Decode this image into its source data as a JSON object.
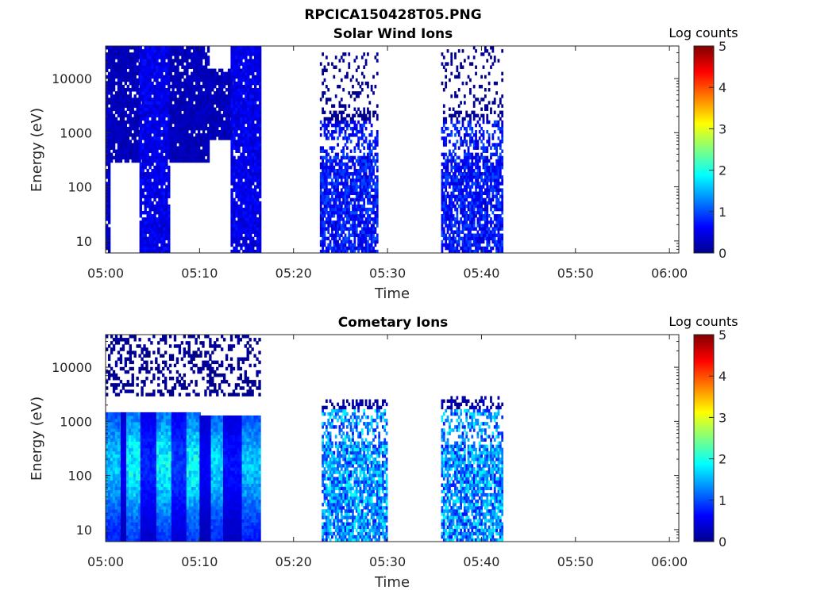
{
  "figure": {
    "title": "RPCICA150428T05.PNG"
  },
  "chart_data": [
    {
      "type": "heatmap",
      "title": "Solar Wind Ions",
      "xlabel": "Time",
      "ylabel": "Energy (eV)",
      "yscale": "log",
      "xlim": [
        "05:00",
        "06:01"
      ],
      "ylim": [
        6,
        40000
      ],
      "xticks": [
        "05:00",
        "05:10",
        "05:20",
        "05:30",
        "05:40",
        "05:50",
        "06:00"
      ],
      "yticks": [
        "10",
        "100",
        "1000",
        "10000"
      ],
      "colorbar": {
        "label": "Log counts",
        "range": [
          0,
          5
        ],
        "ticks": [
          "0",
          "1",
          "2",
          "3",
          "4",
          "5"
        ],
        "colormap": "jet"
      },
      "bands": [
        {
          "t": [
            0.0,
            0.5
          ],
          "e": [
            6,
            40000
          ],
          "level": 0.35,
          "style": "blocky"
        },
        {
          "t": [
            0.5,
            3.6
          ],
          "e": [
            300,
            40000
          ],
          "level": 0.3,
          "style": "blocky"
        },
        {
          "t": [
            3.6,
            6.8
          ],
          "e": [
            6,
            40000
          ],
          "level": 0.55,
          "style": "blocky"
        },
        {
          "t": [
            6.8,
            11.0
          ],
          "e": [
            300,
            40000
          ],
          "level": 0.3,
          "style": "blocky"
        },
        {
          "t": [
            11.0,
            13.3
          ],
          "e": [
            700,
            15000
          ],
          "level": 0.3,
          "style": "blocky"
        },
        {
          "t": [
            13.3,
            16.5
          ],
          "e": [
            6,
            40000
          ],
          "level": 0.55,
          "style": "blocky"
        },
        {
          "t": [
            22.8,
            29.0
          ],
          "e": [
            6,
            30000
          ],
          "level": 0.7,
          "style": "sparse"
        },
        {
          "t": [
            35.7,
            42.2
          ],
          "e": [
            6,
            40000
          ],
          "level": 0.7,
          "style": "sparse"
        }
      ]
    },
    {
      "type": "heatmap",
      "title": "Cometary Ions",
      "xlabel": "Time",
      "ylabel": "Energy (eV)",
      "yscale": "log",
      "xlim": [
        "05:00",
        "06:01"
      ],
      "ylim": [
        6,
        40000
      ],
      "xticks": [
        "05:00",
        "05:10",
        "05:20",
        "05:30",
        "05:40",
        "05:50",
        "06:00"
      ],
      "yticks": [
        "10",
        "100",
        "1000",
        "10000"
      ],
      "colorbar": {
        "label": "Log counts",
        "range": [
          0,
          5
        ],
        "ticks": [
          "0",
          "1",
          "2",
          "3",
          "4",
          "5"
        ],
        "colormap": "jet"
      },
      "bands": [
        {
          "t": [
            0.0,
            16.5
          ],
          "e": [
            3000,
            40000
          ],
          "level": 0.2,
          "style": "lines"
        },
        {
          "t": [
            0.0,
            1.6
          ],
          "e": [
            6,
            1500
          ],
          "level": 1.6,
          "style": "column"
        },
        {
          "t": [
            1.6,
            2.2
          ],
          "e": [
            6,
            1500
          ],
          "level": 0.6,
          "style": "column"
        },
        {
          "t": [
            2.2,
            3.7
          ],
          "e": [
            6,
            1500
          ],
          "level": 1.9,
          "style": "column"
        },
        {
          "t": [
            3.7,
            5.4
          ],
          "e": [
            6,
            1500
          ],
          "level": 0.8,
          "style": "column"
        },
        {
          "t": [
            5.4,
            7.0
          ],
          "e": [
            6,
            1500
          ],
          "level": 1.9,
          "style": "column"
        },
        {
          "t": [
            7.0,
            8.6
          ],
          "e": [
            6,
            1500
          ],
          "level": 0.9,
          "style": "column"
        },
        {
          "t": [
            8.6,
            10.0
          ],
          "e": [
            6,
            1500
          ],
          "level": 1.9,
          "style": "column"
        },
        {
          "t": [
            10.0,
            11.2
          ],
          "e": [
            6,
            1200
          ],
          "level": 0.6,
          "style": "column"
        },
        {
          "t": [
            11.2,
            12.5
          ],
          "e": [
            6,
            1200
          ],
          "level": 1.7,
          "style": "column"
        },
        {
          "t": [
            12.5,
            14.5
          ],
          "e": [
            6,
            1200
          ],
          "level": 0.7,
          "style": "column"
        },
        {
          "t": [
            14.5,
            16.3
          ],
          "e": [
            6,
            1200
          ],
          "level": 1.6,
          "style": "column"
        },
        {
          "t": [
            23.0,
            30.0
          ],
          "e": [
            6,
            2500
          ],
          "level": 1.3,
          "style": "sparse"
        },
        {
          "t": [
            35.7,
            42.3
          ],
          "e": [
            6,
            3000
          ],
          "level": 1.3,
          "style": "sparse"
        }
      ]
    }
  ]
}
